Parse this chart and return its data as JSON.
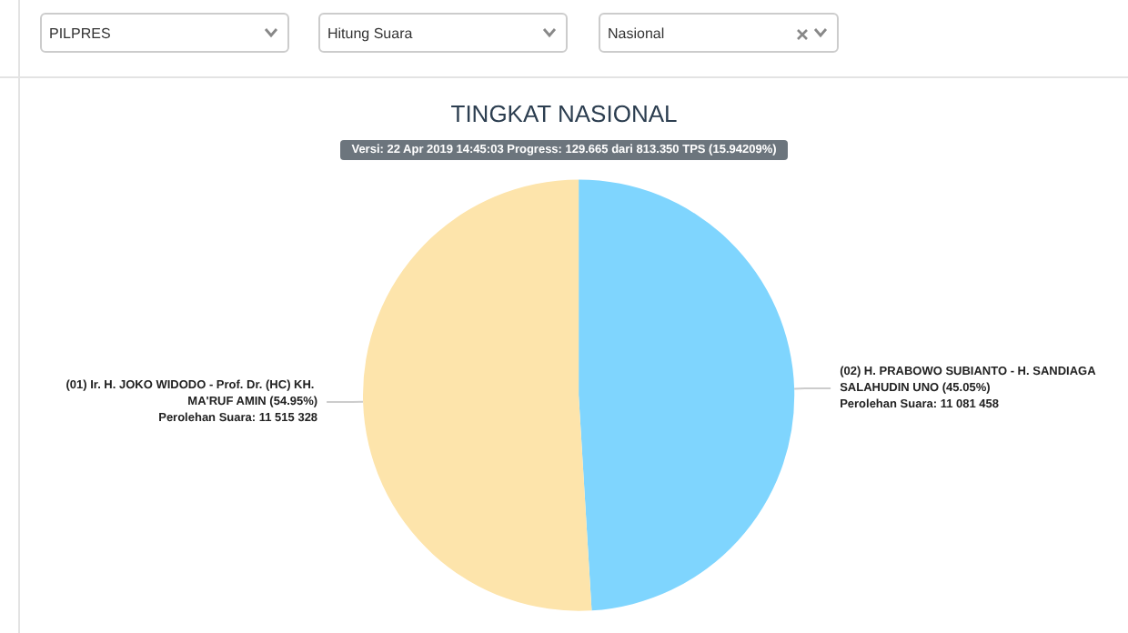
{
  "chart_data": {
    "type": "pie",
    "title": "TINGKAT NASIONAL",
    "subtitle": "Versi: 22 Apr 2019 14:45:03 Progress: 129.665 dari 813.350 TPS (15.94209%)",
    "annotations": [
      "PILPRES",
      "Hitung Suara",
      "Nasional"
    ],
    "categories": [
      "(02) H. PRABOWO SUBIANTO - H. SANDIAGA SALAHUDIN UNO",
      "(01) Ir. H. JOKO WIDODO - Prof. Dr. (HC) KH. MA'RUF AMIN"
    ],
    "values": [
      11081458,
      11515328
    ],
    "value_labels": [
      "(45.05%)\nPerolehan Suara: 11 081 458",
      "(54.95%)\nPerolehan Suara: 11 515 328"
    ],
    "colors": [
      "#7fd5fe",
      "#fde4ab"
    ],
    "legend": false
  }
}
